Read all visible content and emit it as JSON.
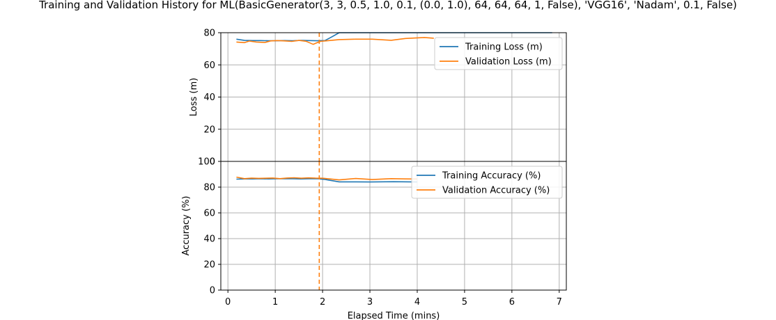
{
  "chart_data": {
    "type": "line",
    "title": "Training and Validation History for ML(BasicGenerator(3, 3, 0.5, 1.0, 0.1, (0.0, 1.0), 64, 64, 64, 1, False), 'VGG16', 'Nadam', 0.1, False)",
    "xlabel": "Elapsed Time (mins)",
    "xlim": [
      -0.15,
      7.15
    ],
    "xticks": [
      0,
      1,
      2,
      3,
      4,
      5,
      6,
      7
    ],
    "vline_x": 1.93,
    "colors": {
      "training": "#1f77b4",
      "validation": "#ff7f0e",
      "grid": "#b0b0b0"
    },
    "panels": [
      {
        "ylabel": "Loss (m)",
        "ylim": [
          0,
          80
        ],
        "yticks": [
          0,
          20,
          40,
          60,
          80
        ],
        "legend_position": "top-right",
        "series": [
          {
            "name": "Training Loss (m)",
            "color_key": "training",
            "x": [
              0.18,
              0.35,
              0.52,
              0.69,
              0.86,
              1.03,
              1.2,
              1.37,
              1.54,
              1.71,
              1.88,
              2.05,
              2.2,
              2.35,
              2.7,
              3.0,
              3.5,
              4.0,
              4.5,
              5.0,
              5.5,
              6.0,
              6.5,
              6.85
            ],
            "values": [
              76,
              75.2,
              75.1,
              75.1,
              75.0,
              75.0,
              75.1,
              75.0,
              75.2,
              75.1,
              75.0,
              75.1,
              77.5,
              80,
              80,
              80,
              80,
              80,
              80,
              80,
              80,
              80,
              80,
              80
            ]
          },
          {
            "name": "Validation Loss (m)",
            "color_key": "validation",
            "x": [
              0.18,
              0.35,
              0.45,
              0.6,
              0.78,
              0.9,
              1.05,
              1.2,
              1.35,
              1.5,
              1.65,
              1.8,
              1.95,
              2.1,
              2.35,
              2.7,
              3.05,
              3.45,
              3.75,
              4.15,
              4.35
            ],
            "values": [
              74.2,
              73.8,
              74.8,
              74.2,
              73.9,
              74.9,
              75.1,
              74.9,
              74.6,
              75.2,
              74.7,
              72.8,
              74.6,
              75.0,
              75.7,
              76.0,
              76.0,
              75.3,
              76.4,
              77.0,
              76.6
            ]
          }
        ]
      },
      {
        "ylabel": "Accuracy (%)",
        "ylim": [
          0,
          100
        ],
        "yticks": [
          0,
          20,
          40,
          60,
          80,
          100
        ],
        "legend_position": "top-right",
        "series": [
          {
            "name": "Training Accuracy (%)",
            "color_key": "training",
            "x": [
              0.18,
              0.35,
              0.52,
              0.69,
              0.86,
              1.03,
              1.2,
              1.37,
              1.54,
              1.71,
              1.88,
              2.05,
              2.35,
              2.7,
              3.0,
              3.5,
              4.0
            ],
            "values": [
              86.2,
              86.4,
              86.4,
              86.5,
              86.4,
              86.5,
              86.6,
              86.5,
              86.4,
              86.5,
              86.6,
              86.0,
              84.1,
              84.1,
              84.0,
              84.2,
              84.0
            ]
          },
          {
            "name": "Validation Accuracy (%)",
            "color_key": "validation",
            "x": [
              0.18,
              0.35,
              0.5,
              0.65,
              0.8,
              0.95,
              1.1,
              1.25,
              1.4,
              1.55,
              1.7,
              1.85,
              2.0,
              2.15,
              2.35,
              2.7,
              3.05,
              3.45,
              3.75,
              4.0
            ],
            "values": [
              87.8,
              86.6,
              87.0,
              86.8,
              86.9,
              87.1,
              86.6,
              87.1,
              87.3,
              86.9,
              87.2,
              87.0,
              86.9,
              86.4,
              85.6,
              86.7,
              85.9,
              86.6,
              86.4,
              86.3
            ]
          }
        ]
      }
    ]
  }
}
